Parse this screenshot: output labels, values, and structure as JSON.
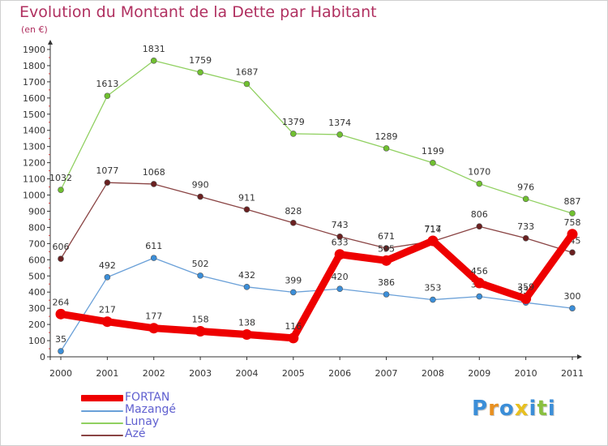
{
  "title": "Evolution du Montant de la Dette par Habitant",
  "subtitle": "(en €)",
  "logo": {
    "letters": [
      "P",
      "r",
      "o",
      "x",
      "i",
      "t",
      "i"
    ],
    "colors": [
      "#3b8ed8",
      "#e89020",
      "#3b8ed8",
      "#e8c020",
      "#3b8ed8",
      "#8ac040",
      "#3b8ed8"
    ]
  },
  "chart_data": {
    "type": "line",
    "title": "Evolution du Montant de la Dette par Habitant",
    "ylabel": "(en €)",
    "x": [
      "2000",
      "2001",
      "2002",
      "2003",
      "2004",
      "2005",
      "2006",
      "2007",
      "2008",
      "2009",
      "2010",
      "2011"
    ],
    "ylim": [
      0,
      1900
    ],
    "yticks": [
      0,
      100,
      200,
      300,
      400,
      500,
      600,
      700,
      800,
      900,
      1000,
      1100,
      1200,
      1300,
      1400,
      1500,
      1600,
      1700,
      1800,
      1900
    ],
    "grid": false,
    "legend_position": "bottom-left",
    "series": [
      {
        "name": "Lunay",
        "color": "#90d060",
        "marker": "#70c030",
        "values": [
          1032,
          1613,
          1831,
          1759,
          1687,
          1379,
          1374,
          1289,
          1199,
          1070,
          976,
          887
        ]
      },
      {
        "name": "Azé",
        "color": "#8a4444",
        "marker": "#6a2020",
        "values": [
          606,
          1077,
          1068,
          990,
          911,
          828,
          743,
          671,
          714,
          806,
          733,
          645
        ]
      },
      {
        "name": "Mazangé",
        "color": "#6aa0d8",
        "marker": "#3b8ed8",
        "values": [
          35,
          492,
          611,
          502,
          432,
          399,
          420,
          386,
          353,
          373,
          335,
          300
        ]
      },
      {
        "name": "FORTAN",
        "color": "#ee0000",
        "marker": "#ee0000",
        "values": [
          264,
          217,
          177,
          158,
          138,
          116,
          633,
          595,
          717,
          456,
          359,
          758
        ]
      }
    ],
    "legend_order": [
      "FORTAN",
      "Mazangé",
      "Lunay",
      "Azé"
    ]
  }
}
